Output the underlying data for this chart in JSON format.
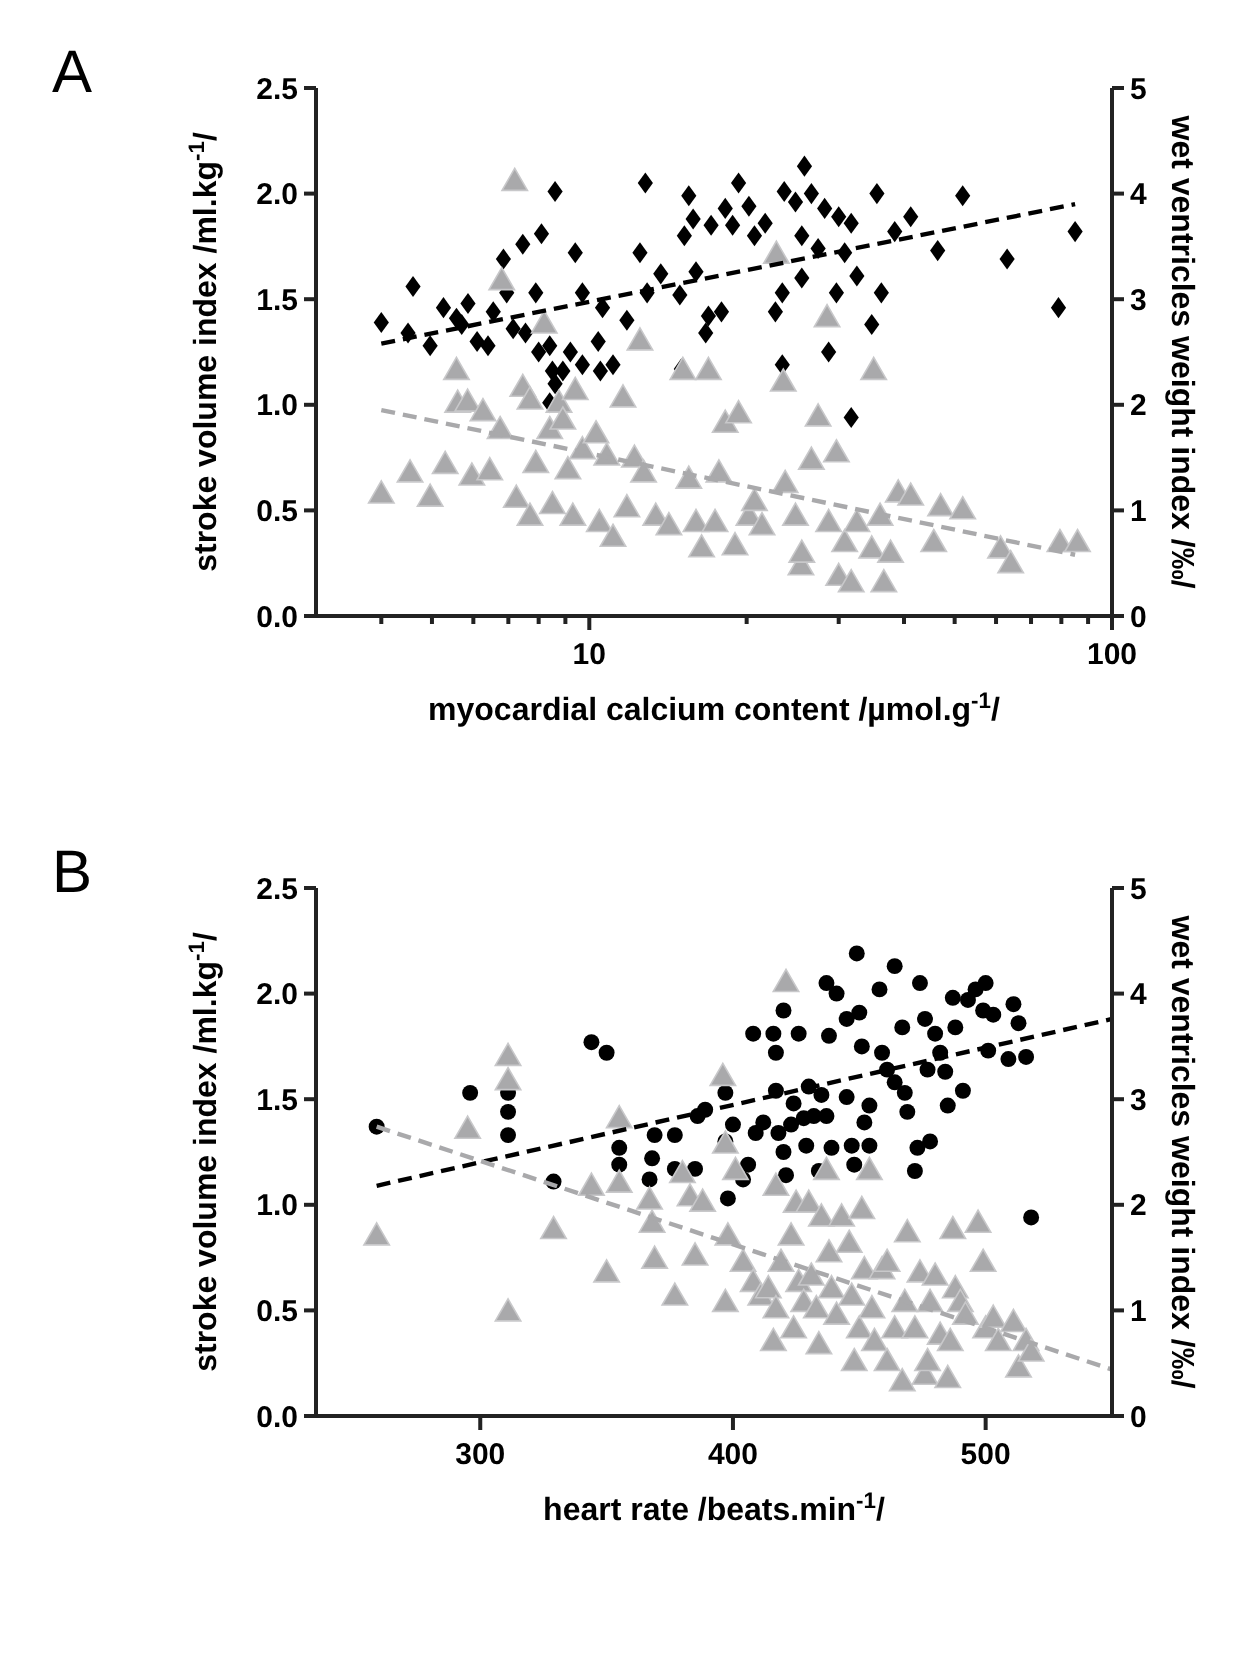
{
  "chart_data": [
    {
      "type": "scatter",
      "title": "A",
      "xlabel": "myocardial calcium content /µmol.g$^{-1}$/",
      "ylabel": "stroke volume index /ml.kg$^{-1}$/",
      "y2label": "wet ventricles weight index /‰/",
      "log": "x",
      "xlim": [
        3,
        100
      ],
      "xticks": [
        {
          "value": 4,
          "label": null
        },
        {
          "value": 5,
          "label": null
        },
        {
          "value": 6,
          "label": null
        },
        {
          "value": 7,
          "label": null
        },
        {
          "value": 8,
          "label": null
        },
        {
          "value": 9,
          "label": null
        },
        10,
        {
          "value": 20,
          "label": null
        },
        {
          "value": 30,
          "label": null
        },
        {
          "value": 40,
          "label": null
        },
        {
          "value": 50,
          "label": null
        },
        {
          "value": 60,
          "label": null
        },
        {
          "value": 70,
          "label": null
        },
        {
          "value": 80,
          "label": null
        },
        {
          "value": 90,
          "label": null
        },
        100
      ],
      "ylim": [
        0,
        2.5
      ],
      "yticks": [
        {
          "value": 0,
          "label": "0.0"
        },
        0.5,
        {
          "value": 1,
          "label": "1.0"
        },
        1.5,
        {
          "value": 2,
          "label": "2.0"
        },
        2.5
      ],
      "y2lim": [
        0,
        5
      ],
      "y2ticks": [
        0,
        1,
        2,
        3,
        4,
        5
      ],
      "series": [
        {
          "color": "#000000",
          "marker": "diamond",
          "x": [
            4.0,
            4.5,
            4.6,
            4.96,
            5.26,
            5.57,
            5.86,
            5.7,
            6.1,
            6.4,
            6.55,
            6.85,
            6.95,
            7.15,
            7.46,
            7.55,
            7.9,
            8.1,
            8.0,
            8.4,
            8.5,
            8.6,
            8.6,
            8.4,
            8.9,
            9.2,
            9.4,
            9.7,
            9.7,
            10.4,
            10.5,
            10.6,
            11.1,
            11.8,
            12.8,
            12.5,
            12.9,
            13.7,
            15.0,
            14.9,
            15.2,
            15.5,
            15.8,
            16.0,
            16.7,
            16.9,
            17.1,
            17.9,
            18.2,
            18.8,
            19.3,
            20.2,
            20.7,
            21.7,
            22.7,
            23.4,
            23.4,
            23.6,
            24.8,
            25.5,
            25.5,
            25.8,
            26.6,
            27.4,
            28.2,
            28.7,
            29.7,
            30.0,
            30.8,
            31.7,
            31.7,
            32.5,
            34.7,
            35.5,
            36.2,
            38.4,
            41.2,
            46.4,
            51.8,
            63.0,
            79.0,
            85.0
          ],
          "values": [
            1.39,
            1.34,
            1.56,
            1.28,
            1.46,
            1.41,
            1.48,
            1.38,
            1.3,
            1.28,
            1.44,
            1.69,
            1.53,
            1.36,
            1.76,
            1.34,
            1.53,
            1.81,
            1.25,
            1.28,
            1.16,
            2.01,
            1.1,
            1.01,
            1.16,
            1.25,
            1.72,
            1.53,
            1.19,
            1.3,
            1.16,
            1.46,
            1.19,
            1.4,
            2.05,
            1.72,
            1.53,
            1.62,
            1.17,
            1.52,
            1.8,
            1.99,
            1.88,
            1.63,
            1.34,
            1.42,
            1.85,
            1.44,
            1.93,
            1.85,
            2.05,
            1.94,
            1.8,
            1.86,
            1.44,
            1.53,
            1.19,
            2.01,
            1.96,
            1.8,
            1.6,
            2.13,
            2.0,
            1.74,
            1.93,
            1.25,
            1.53,
            1.89,
            1.72,
            1.86,
            0.94,
            1.61,
            1.38,
            2.0,
            1.53,
            1.82,
            1.89,
            1.73,
            1.99,
            1.69,
            1.46,
            1.82
          ]
        },
        {
          "axis": "y2",
          "color": "#a9a9ab",
          "marker": "triangle",
          "x": [
            4.0,
            4.54,
            4.96,
            5.3,
            5.57,
            5.6,
            5.85,
            5.96,
            6.26,
            6.45,
            6.75,
            6.8,
            7.2,
            7.25,
            7.46,
            7.7,
            7.7,
            7.9,
            8.2,
            8.4,
            8.5,
            8.75,
            8.9,
            9.1,
            9.3,
            9.4,
            9.7,
            10.3,
            10.45,
            10.8,
            11.1,
            11.6,
            11.8,
            12.2,
            12.5,
            12.7,
            13.4,
            14.2,
            15.1,
            15.5,
            16.0,
            16.4,
            16.9,
            17.4,
            17.7,
            18.2,
            19.0,
            19.3,
            20.2,
            20.7,
            21.4,
            22.8,
            23.5,
            23.7,
            24.8,
            25.4,
            25.5,
            26.6,
            27.4,
            28.5,
            28.7,
            29.7,
            30.0,
            30.8,
            31.7,
            32.5,
            34.7,
            35.0,
            36.0,
            36.6,
            37.7,
            39.0,
            41.2,
            45.6,
            47.0,
            51.8,
            61.2,
            64.0,
            79.5,
            85.9
          ],
          "values": [
            1.14,
            1.34,
            1.11,
            1.42,
            2.31,
            2.0,
            2.01,
            1.31,
            1.92,
            1.36,
            1.75,
            3.16,
            4.1,
            1.1,
            2.15,
            2.03,
            0.93,
            1.43,
            2.75,
            1.75,
            1.04,
            2.0,
            1.84,
            1.37,
            0.93,
            2.12,
            1.56,
            1.71,
            0.87,
            1.5,
            0.73,
            2.05,
            1.01,
            1.48,
            2.59,
            1.34,
            0.93,
            0.84,
            2.31,
            1.28,
            0.87,
            0.63,
            2.31,
            0.87,
            1.34,
            1.81,
            0.65,
            1.9,
            0.93,
            1.07,
            0.84,
            3.41,
            2.2,
            1.24,
            0.93,
            0.46,
            0.58,
            1.46,
            1.87,
            2.81,
            0.87,
            1.53,
            0.36,
            0.68,
            0.3,
            0.87,
            0.62,
            2.31,
            0.93,
            0.3,
            0.58,
            1.15,
            1.12,
            0.68,
            1.02,
            0.99,
            0.62,
            0.48,
            0.68,
            0.68
          ]
        },
        {
          "type": "line",
          "color": "#000000",
          "line_style": "dashed",
          "x": [
            4.0,
            85
          ],
          "values": [
            1.29,
            1.95
          ]
        },
        {
          "type": "line",
          "axis": "y2",
          "color": "#a9a9ab",
          "line_style": "dashed",
          "x": [
            4.0,
            85
          ],
          "values": [
            1.95,
            0.58
          ]
        }
      ]
    },
    {
      "type": "scatter",
      "title": "B",
      "xlabel": "heart rate /beats.min$^{-1}$/",
      "ylabel": "stroke volume index /ml.kg$^{-1}$/",
      "y2label": "wet ventricles weight index /‰/",
      "xlim": [
        235,
        550
      ],
      "xticks": [
        300,
        400,
        500
      ],
      "ylim": [
        0,
        2.5
      ],
      "yticks": [
        {
          "value": 0,
          "label": "0.0"
        },
        0.5,
        {
          "value": 1,
          "label": "1.0"
        },
        1.5,
        {
          "value": 2,
          "label": "2.0"
        },
        2.5
      ],
      "y2lim": [
        0,
        5
      ],
      "y2ticks": [
        0,
        1,
        2,
        3,
        4,
        5
      ],
      "series": [
        {
          "color": "#000000",
          "marker": "circle",
          "x": [
            259,
            296,
            311,
            311,
            311,
            329,
            344,
            350,
            355,
            355,
            367,
            368,
            369,
            377,
            377,
            385,
            386,
            389,
            397,
            397,
            398,
            400,
            404,
            406,
            408,
            409,
            412,
            416,
            417,
            417,
            418,
            420,
            420,
            421,
            423,
            424,
            426,
            428,
            429,
            430,
            432,
            434,
            435,
            437,
            437,
            438,
            439,
            441,
            445,
            445,
            447,
            448,
            449,
            450,
            451,
            452,
            454,
            454,
            458,
            459,
            461,
            464,
            464,
            467,
            468,
            469,
            472,
            473,
            474,
            476,
            477,
            478,
            480,
            482,
            484,
            485,
            487,
            488,
            491,
            493,
            496,
            499,
            500,
            501,
            503,
            511,
            509,
            513,
            516,
            518
          ],
          "values": [
            1.37,
            1.53,
            1.53,
            1.44,
            1.33,
            1.11,
            1.77,
            1.72,
            1.27,
            1.19,
            1.12,
            1.22,
            1.33,
            1.33,
            1.17,
            1.17,
            1.42,
            1.45,
            1.53,
            1.3,
            1.03,
            1.38,
            1.12,
            1.19,
            1.81,
            1.34,
            1.39,
            1.81,
            1.72,
            1.54,
            1.34,
            1.92,
            1.25,
            1.14,
            1.38,
            1.48,
            1.81,
            1.41,
            1.28,
            1.56,
            1.42,
            1.16,
            1.52,
            1.42,
            2.05,
            1.8,
            1.27,
            2.0,
            1.51,
            1.88,
            1.28,
            1.19,
            2.19,
            1.91,
            1.75,
            1.39,
            1.47,
            1.28,
            2.02,
            1.72,
            1.64,
            2.13,
            1.58,
            1.84,
            1.53,
            1.44,
            1.16,
            1.27,
            2.05,
            1.88,
            1.64,
            1.3,
            1.81,
            1.72,
            1.63,
            1.47,
            1.98,
            1.84,
            1.54,
            1.97,
            2.02,
            1.92,
            2.05,
            1.73,
            1.9,
            1.95,
            1.69,
            1.86,
            1.7,
            0.94
          ]
        },
        {
          "axis": "y2",
          "color": "#a9a9ab",
          "marker": "triangle",
          "x": [
            259,
            295,
            311,
            311,
            311,
            329,
            344,
            350,
            355,
            355,
            367,
            368,
            369,
            377,
            380,
            383,
            385,
            388,
            396,
            397,
            398,
            397,
            401,
            404,
            408,
            411,
            414,
            416,
            417,
            417,
            419,
            421,
            423,
            424,
            425,
            426,
            428,
            430,
            431,
            433,
            434,
            435,
            437,
            438,
            439,
            441,
            443,
            446,
            447,
            448,
            450,
            451,
            452,
            454,
            455,
            456,
            459,
            461,
            461,
            464,
            467,
            468,
            469,
            472,
            474,
            476,
            477,
            478,
            480,
            482,
            485,
            486,
            487,
            488,
            490,
            492,
            497,
            499,
            500,
            503,
            505,
            511,
            513,
            516,
            518
          ],
          "values": [
            1.69,
            2.7,
            3.39,
            3.16,
            0.97,
            1.75,
            2.16,
            1.34,
            2.8,
            2.19,
            2.03,
            1.81,
            1.47,
            1.12,
            2.28,
            2.06,
            1.5,
            2.01,
            3.2,
            2.56,
            1.69,
            1.06,
            2.31,
            1.44,
            1.25,
            1.12,
            1.19,
            0.69,
            2.16,
            1.0,
            1.44,
            4.09,
            1.69,
            0.81,
            2.0,
            1.25,
            1.06,
            2.0,
            1.31,
            1.0,
            0.66,
            1.87,
            2.31,
            1.53,
            1.19,
            0.94,
            1.87,
            1.62,
            1.12,
            0.5,
            0.81,
            1.94,
            1.37,
            2.31,
            1.0,
            0.69,
            1.37,
            0.5,
            1.44,
            0.81,
            0.31,
            1.06,
            1.72,
            0.81,
            1.34,
            0.37,
            0.5,
            1.06,
            1.31,
            0.75,
            0.34,
            0.69,
            1.75,
            1.19,
            1.06,
            0.94,
            1.81,
            1.44,
            0.81,
            0.91,
            0.69,
            0.87,
            0.44,
            0.69,
            0.59
          ]
        },
        {
          "type": "line",
          "color": "#000000",
          "line_style": "dashed",
          "x": [
            259,
            550
          ],
          "values": [
            1.09,
            1.88
          ]
        },
        {
          "type": "line",
          "axis": "y2",
          "color": "#a9a9ab",
          "line_style": "dashed",
          "x": [
            259,
            550
          ],
          "values": [
            2.74,
            0.44
          ]
        }
      ]
    }
  ]
}
